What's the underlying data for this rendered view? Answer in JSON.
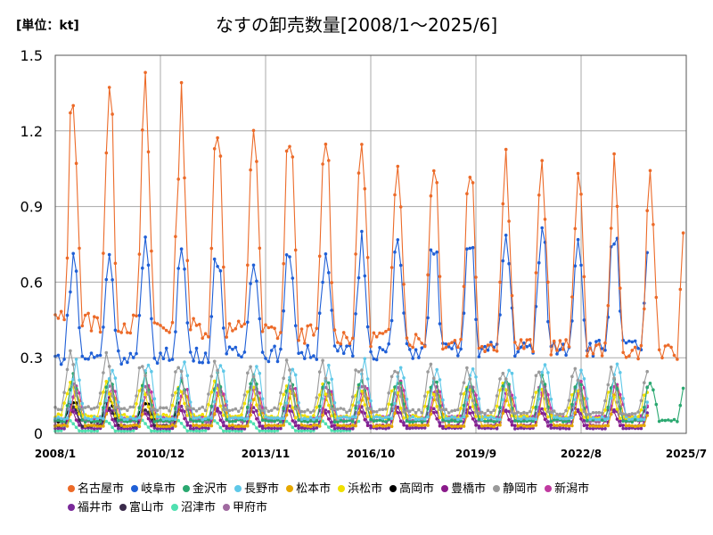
{
  "unit_label": "[単位：kt]",
  "chart_data": {
    "type": "line",
    "title": "なすの卸売数量[2008/1～2025/6]",
    "unit": "kt",
    "xlabel": "",
    "ylabel": "",
    "x_start": "2008-01",
    "x_end": "2025-07",
    "x_ticks": [
      "2008/1",
      "2010/12",
      "2013/11",
      "2016/10",
      "2019/9",
      "2022/8",
      "2025/7"
    ],
    "y_ticks": [
      "0",
      "0.3",
      "0.6",
      "0.9",
      "1.2",
      "1.5"
    ],
    "ylim": [
      0,
      1.5
    ],
    "grid": true,
    "legend_position": "bottom",
    "series": [
      {
        "name": "名古屋市",
        "color": "#ec6a28",
        "start": "2008-01",
        "end": "2025-06",
        "low": 0.45,
        "high": 1.38,
        "peak_month": 7,
        "trend": -0.3
      },
      {
        "name": "岐阜市",
        "color": "#1f5fd6",
        "start": "2008-01",
        "end": "2024-06",
        "low": 0.3,
        "high": 0.7,
        "peak_month": 7,
        "trend": 0.15
      },
      {
        "name": "金沢市",
        "color": "#2aa870",
        "start": "2008-01",
        "end": "2025-06",
        "low": 0.05,
        "high": 0.22,
        "peak_month": 7,
        "trend": 0.0
      },
      {
        "name": "長野市",
        "color": "#5fc8e8",
        "start": "2008-01",
        "end": "2024-06",
        "low": 0.06,
        "high": 0.27,
        "peak_month": 8,
        "trend": 0.0
      },
      {
        "name": "松本市",
        "color": "#e6a800",
        "start": "2008-01",
        "end": "2024-06",
        "low": 0.03,
        "high": 0.17,
        "peak_month": 8,
        "trend": 0.0
      },
      {
        "name": "浜松市",
        "color": "#f0e000",
        "start": "2008-01",
        "end": "2024-06",
        "low": 0.07,
        "high": 0.2,
        "peak_month": 6,
        "trend": -0.1
      },
      {
        "name": "高岡市",
        "color": "#000000",
        "start": "2008-01",
        "end": "2011-06",
        "low": 0.05,
        "high": 0.13,
        "peak_month": 7,
        "trend": 0.0
      },
      {
        "name": "豊橋市",
        "color": "#8a1a8a",
        "start": "2008-01",
        "end": "2024-06",
        "low": 0.03,
        "high": 0.1,
        "peak_month": 6,
        "trend": 0.0
      },
      {
        "name": "静岡市",
        "color": "#9a9a9a",
        "start": "2008-01",
        "end": "2024-06",
        "low": 0.1,
        "high": 0.3,
        "peak_month": 6,
        "trend": -0.2
      },
      {
        "name": "新潟市",
        "color": "#c03aa0",
        "start": "2008-01",
        "end": "2024-06",
        "low": 0.06,
        "high": 0.18,
        "peak_month": 8,
        "trend": 0.1
      },
      {
        "name": "福井市",
        "color": "#7a2a9a",
        "start": "2008-01",
        "end": "2024-06",
        "low": 0.02,
        "high": 0.1,
        "peak_month": 7,
        "trend": 0.0
      },
      {
        "name": "富山市",
        "color": "#3a2a4a",
        "start": "2008-01",
        "end": "2011-06",
        "low": 0.03,
        "high": 0.1,
        "peak_month": 7,
        "trend": 0.0
      },
      {
        "name": "沼津市",
        "color": "#50e0b0",
        "start": "2008-01",
        "end": "2016-06",
        "low": 0.01,
        "high": 0.05,
        "peak_month": 6,
        "trend": 0.0
      },
      {
        "name": "甲府市",
        "color": "#a06aa0",
        "start": "2008-01",
        "end": "2024-06",
        "low": 0.05,
        "high": 0.2,
        "peak_month": 7,
        "trend": 0.0
      }
    ]
  }
}
